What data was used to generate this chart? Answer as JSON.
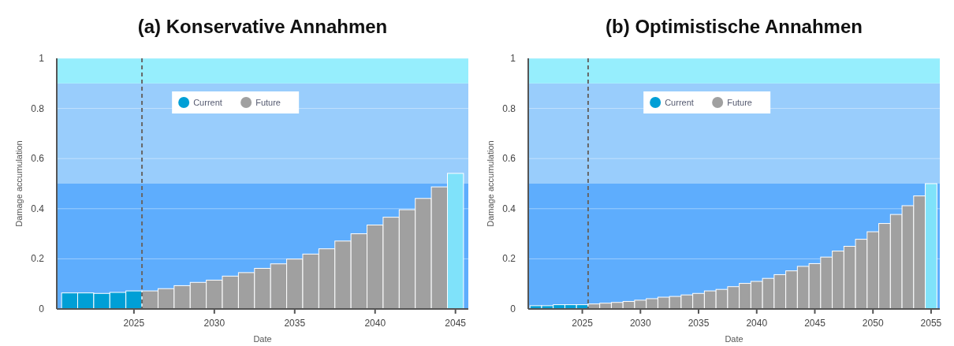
{
  "chart_data": [
    {
      "type": "bar",
      "title": "(a) Konservative Annahmen",
      "xlabel": "Date",
      "ylabel": "Damage accumulation",
      "xlim": [
        2020.2,
        2045.8
      ],
      "xticks": [
        2025,
        2030,
        2035,
        2040,
        2045
      ],
      "ylim": [
        0,
        1
      ],
      "yticks": [
        0,
        0.2,
        0.4,
        0.6,
        0.8,
        1
      ],
      "grid": "y",
      "legend": "top",
      "bands": [
        {
          "axis": "y",
          "from": 0,
          "to": 0.5,
          "color": "#5eadfd"
        },
        {
          "axis": "y",
          "from": 0.5,
          "to": 0.9,
          "color": "#99cdfc"
        },
        {
          "axis": "y",
          "from": 0.9,
          "to": 1,
          "color": "#96eefd"
        }
      ],
      "ref_lines": [
        {
          "axis": "x",
          "value": 2025.5,
          "color": "#666666",
          "line_style": "dashed"
        }
      ],
      "series": [
        {
          "name": "Current",
          "color": "#009fd6",
          "x": [
            2021,
            2022,
            2023,
            2024,
            2025
          ],
          "values": [
            0.064,
            0.064,
            0.062,
            0.066,
            0.072
          ]
        },
        {
          "name": "Future",
          "color": "#a0a0a0",
          "x": [
            2026,
            2027,
            2028,
            2029,
            2030,
            2031,
            2032,
            2033,
            2034,
            2035,
            2036,
            2037,
            2038,
            2039,
            2040,
            2041,
            2042,
            2043,
            2044
          ],
          "values": [
            0.072,
            0.081,
            0.093,
            0.106,
            0.115,
            0.131,
            0.145,
            0.162,
            0.18,
            0.199,
            0.219,
            0.24,
            0.271,
            0.3,
            0.335,
            0.366,
            0.396,
            0.441,
            0.487
          ]
        },
        {
          "color": "#7fe2fa",
          "x": [
            2045
          ],
          "values": [
            0.541
          ]
        }
      ]
    },
    {
      "type": "bar",
      "title": "(b) Optimistische Annahmen",
      "xlabel": "Date",
      "ylabel": "Damage accumulation",
      "xlim": [
        2020.35,
        2055.75
      ],
      "xticks": [
        2025,
        2030,
        2035,
        2040,
        2045,
        2050,
        2055
      ],
      "ylim": [
        0,
        1
      ],
      "yticks": [
        0,
        0.2,
        0.4,
        0.6,
        0.8,
        1
      ],
      "grid": "y",
      "legend": "top",
      "bands": [
        {
          "axis": "y",
          "from": 0,
          "to": 0.5,
          "color": "#5eadfd"
        },
        {
          "axis": "y",
          "from": 0.5,
          "to": 0.9,
          "color": "#99cdfc"
        },
        {
          "axis": "y",
          "from": 0.9,
          "to": 1,
          "color": "#96eefd"
        }
      ],
      "ref_lines": [
        {
          "axis": "x",
          "value": 2025.5,
          "color": "#666666",
          "line_style": "dashed"
        }
      ],
      "series": [
        {
          "name": "Current",
          "color": "#009fd6",
          "x": [
            2021,
            2022,
            2023,
            2024,
            2025
          ],
          "values": [
            0.013,
            0.013,
            0.017,
            0.017,
            0.017
          ]
        },
        {
          "name": "Future",
          "color": "#a0a0a0",
          "x": [
            2026,
            2027,
            2028,
            2029,
            2030,
            2031,
            2032,
            2033,
            2034,
            2035,
            2036,
            2037,
            2038,
            2039,
            2040,
            2041,
            2042,
            2043,
            2044,
            2045,
            2046,
            2047,
            2048,
            2049,
            2050,
            2051,
            2052,
            2053,
            2054
          ],
          "values": [
            0.02,
            0.023,
            0.026,
            0.03,
            0.035,
            0.041,
            0.047,
            0.05,
            0.056,
            0.062,
            0.072,
            0.078,
            0.089,
            0.102,
            0.11,
            0.122,
            0.137,
            0.152,
            0.17,
            0.181,
            0.207,
            0.231,
            0.25,
            0.278,
            0.308,
            0.341,
            0.377,
            0.412,
            0.451
          ]
        },
        {
          "color": "#7fe2fa",
          "x": [
            2055
          ],
          "values": [
            0.5
          ]
        }
      ]
    }
  ]
}
